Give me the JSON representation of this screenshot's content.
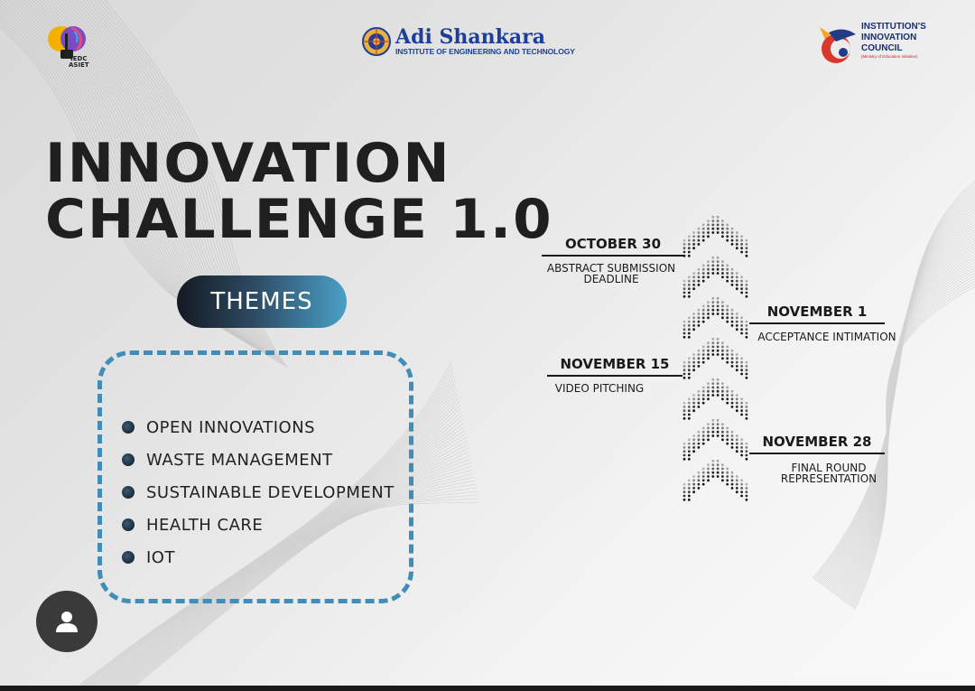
{
  "logos": {
    "iedc": "IEDC\nASIET",
    "asiet_name": "Adi Shankara",
    "asiet_sub": "INSTITUTE OF ENGINEERING AND TECHNOLOGY",
    "iic_line1": "INSTITUTION'S",
    "iic_line2": "INNOVATION",
    "iic_line3": "COUNCIL",
    "iic_sub": "(Ministry of Education Initiative)"
  },
  "title": {
    "line1": "INNOVATION",
    "line2": "CHALLENGE 1.0"
  },
  "themes": {
    "label": "THEMES",
    "items": [
      "OPEN INNOVATIONS",
      "WASTE MANAGEMENT",
      "SUSTAINABLE DEVELOPMENT",
      "HEALTH CARE",
      "IOT"
    ]
  },
  "timeline": [
    {
      "date": "OCTOBER 30",
      "desc_line1": "ABSTRACT SUBMISSION",
      "desc_line2": "DEADLINE"
    },
    {
      "date": "NOVEMBER 1",
      "desc_line1": "ACCEPTANCE INTIMATION",
      "desc_line2": ""
    },
    {
      "date": "NOVEMBER 15",
      "desc_line1": "VIDEO PITCHING",
      "desc_line2": ""
    },
    {
      "date": "NOVEMBER 28",
      "desc_line1": "FINAL ROUND",
      "desc_line2": "REPRESENTATION"
    }
  ],
  "colors": {
    "accent": "#3f8db8",
    "title": "#1f1f1f",
    "asiet_blue": "#1d3f9a"
  },
  "profile_button": {
    "icon": "user-icon"
  }
}
